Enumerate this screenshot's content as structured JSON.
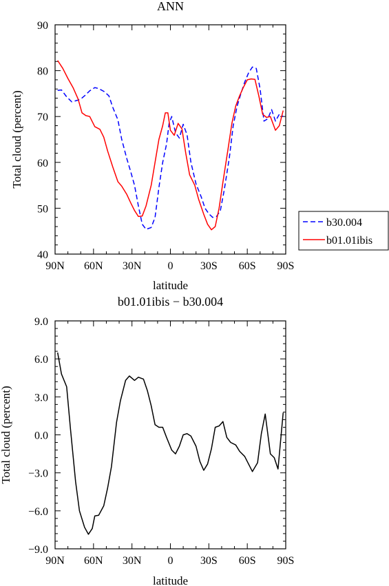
{
  "chart_data": [
    {
      "type": "line",
      "title": "ANN",
      "xlabel": "latitude",
      "ylabel": "Total cloud (percent)",
      "xlim": [
        90,
        -90
      ],
      "ylim": [
        40,
        90
      ],
      "x_tick_labels": [
        "90N",
        "60N",
        "30N",
        "0",
        "30S",
        "60S",
        "90S"
      ],
      "x_ticks": [
        90,
        60,
        30,
        0,
        -30,
        -60,
        -90
      ],
      "y_ticks": [
        40,
        50,
        60,
        70,
        80,
        90
      ],
      "y_tick_labels": [
        "40",
        "50",
        "60",
        "70",
        "80",
        "90"
      ],
      "legend": "right-bottom",
      "series": [
        {
          "name": "b30.004",
          "color": "#0000ff",
          "dash": "dashed",
          "x": [
            88,
            85,
            81,
            77,
            73,
            70,
            67,
            63,
            59,
            56,
            52,
            48,
            45,
            41,
            38,
            34,
            31,
            28,
            25,
            22,
            19,
            15,
            12,
            9,
            6,
            3,
            1,
            -1,
            -4,
            -7,
            -10,
            -13,
            -16,
            -20,
            -24,
            -27,
            -30,
            -33,
            -36,
            -39,
            -42,
            -46,
            -49,
            -52,
            -55,
            -58,
            -61,
            -64,
            -67,
            -70,
            -73,
            -76,
            -79,
            -82,
            -85,
            -88
          ],
          "values": [
            75.7,
            75.8,
            74.3,
            73.2,
            73.5,
            73.8,
            74.5,
            75.6,
            76.3,
            76.1,
            75.5,
            74.5,
            72,
            69.3,
            65,
            60.8,
            58,
            55,
            50.5,
            46.5,
            45.4,
            45.8,
            48,
            54.5,
            60,
            64,
            68.5,
            70,
            66.5,
            65.3,
            68.3,
            66,
            60,
            55.3,
            52.5,
            50,
            48.8,
            48,
            48.2,
            49.5,
            54,
            61,
            68,
            72.2,
            75,
            77.5,
            79.5,
            80.8,
            80.5,
            76,
            69,
            69.5,
            71.5,
            69,
            70.5,
            70
          ]
        },
        {
          "name": "b01.01ibis",
          "color": "#ff0000",
          "dash": "solid",
          "x": [
            88,
            84,
            80,
            76,
            72,
            69,
            66,
            63,
            59,
            55,
            52,
            49,
            45,
            41,
            38,
            34,
            31,
            28,
            25,
            22,
            19,
            15,
            12,
            9,
            6,
            4,
            2,
            0,
            -3,
            -6,
            -9,
            -12,
            -15,
            -19,
            -22,
            -26,
            -29,
            -32,
            -35,
            -38,
            -41,
            -45,
            -48,
            -51,
            -54,
            -57,
            -60,
            -63,
            -66,
            -69,
            -72,
            -75,
            -78,
            -82,
            -85,
            -88
          ],
          "values": [
            82.2,
            80.5,
            78.3,
            76.3,
            73.8,
            70.8,
            70.2,
            70,
            67.8,
            67.2,
            65.5,
            62.5,
            59,
            55.8,
            54.8,
            53,
            51.2,
            49.5,
            48.2,
            48.3,
            50.5,
            55,
            60,
            65,
            68,
            70.8,
            70.8,
            67,
            65.9,
            68.5,
            67.3,
            62,
            57.3,
            55,
            52,
            48.7,
            46.5,
            45.3,
            46,
            50,
            55.7,
            63,
            68.5,
            72.3,
            74.5,
            76.4,
            78,
            78.2,
            78.1,
            74.5,
            70.5,
            69.8,
            70,
            67,
            68,
            71.3
          ]
        }
      ]
    },
    {
      "type": "line",
      "title": "b01.01ibis − b30.004",
      "xlabel": "latitude",
      "ylabel": "Total cloud (percent)",
      "xlim": [
        90,
        -90
      ],
      "ylim": [
        -9,
        9
      ],
      "x_tick_labels": [
        "90N",
        "60N",
        "30N",
        "0",
        "30S",
        "60S",
        "90S"
      ],
      "x_ticks": [
        90,
        60,
        30,
        0,
        -30,
        -60,
        -90
      ],
      "y_ticks": [
        -9,
        -6,
        -3,
        0,
        3,
        6,
        9
      ],
      "y_tick_labels": [
        "−9.0",
        "−6.0",
        "−3.0",
        "0.0",
        "3.0",
        "6.0",
        "9.0"
      ],
      "series": [
        {
          "color": "#000000",
          "dash": "solid",
          "x": [
            88,
            85,
            81,
            78,
            74,
            71,
            67,
            64,
            61,
            59,
            56,
            52,
            49,
            46,
            42,
            39,
            35,
            32,
            28,
            25,
            21,
            18,
            15,
            12,
            9,
            6,
            3,
            -1,
            -4,
            -7,
            -10,
            -13,
            -16,
            -20,
            -23,
            -26,
            -29,
            -32,
            -35,
            -38,
            -41,
            -44,
            -47,
            -51,
            -54,
            -58,
            -61,
            -64,
            -68,
            -71,
            -74,
            -78,
            -81,
            -84,
            -88
          ],
          "values": [
            6.5,
            4.8,
            3.8,
            0.5,
            -3.7,
            -6,
            -7.3,
            -7.85,
            -7.4,
            -6.4,
            -6.35,
            -5.6,
            -4.2,
            -2.5,
            1,
            2.7,
            4.3,
            4.65,
            4.3,
            4.55,
            4.4,
            3.5,
            2.3,
            0.8,
            0.6,
            0.6,
            -0.2,
            -1.2,
            -1.5,
            -0.9,
            0,
            0.1,
            -0.1,
            -0.9,
            -2.1,
            -2.8,
            -2.3,
            -1.1,
            0.6,
            0.7,
            1.05,
            -0.2,
            -0.6,
            -0.8,
            -1.3,
            -1.7,
            -2.3,
            -2.9,
            -2.2,
            0.1,
            1.65,
            -1.5,
            -1.8,
            -2.7,
            1.75
          ]
        }
      ]
    }
  ]
}
